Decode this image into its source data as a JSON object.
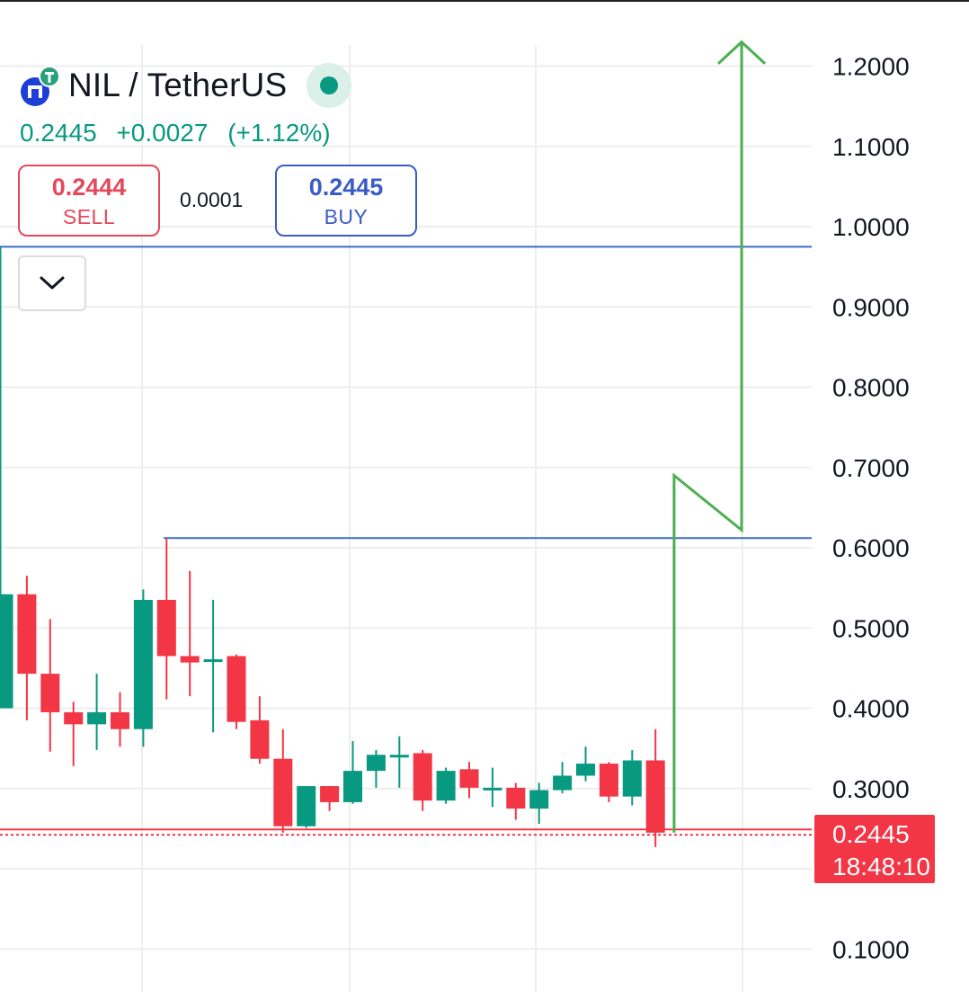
{
  "symbol": {
    "icon": "nil-coin-icon",
    "title": "NIL / TetherUS",
    "status": "market-open-dot"
  },
  "quote": {
    "price": "0.2445",
    "change": "+0.0027",
    "change_pct": "(+1.12%)"
  },
  "trade": {
    "sell_price": "0.2444",
    "sell_label": "SELL",
    "spread": "0.0001",
    "buy_price": "0.2445",
    "buy_label": "BUY"
  },
  "controls": {
    "collapse_icon": "chevron-down-icon"
  },
  "last_price_tag": {
    "price": "0.2445",
    "countdown": "18:48:10"
  },
  "colors": {
    "up": "#089981",
    "down": "#f23645",
    "level_line": "#3b6bc4",
    "arrow": "#4caf50",
    "grid": "#eeeeee"
  },
  "chart_data": {
    "type": "candlestick",
    "y_ticks": [
      "1.2000",
      "1.1000",
      "1.0000",
      "0.9000",
      "0.8000",
      "0.7000",
      "0.6000",
      "0.5000",
      "0.4000",
      "0.3000",
      "0.1000"
    ],
    "ylim": [
      0.04,
      1.3
    ],
    "grid": true,
    "candles": [
      {
        "open": 0.4,
        "high": 0.542,
        "low": 0.4,
        "close": 0.542
      },
      {
        "open": 0.542,
        "high": 0.565,
        "low": 0.385,
        "close": 0.443
      },
      {
        "open": 0.443,
        "high": 0.511,
        "low": 0.346,
        "close": 0.395
      },
      {
        "open": 0.395,
        "high": 0.408,
        "low": 0.328,
        "close": 0.38
      },
      {
        "open": 0.38,
        "high": 0.443,
        "low": 0.348,
        "close": 0.395
      },
      {
        "open": 0.395,
        "high": 0.42,
        "low": 0.352,
        "close": 0.374
      },
      {
        "open": 0.374,
        "high": 0.548,
        "low": 0.352,
        "close": 0.535
      },
      {
        "open": 0.535,
        "high": 0.611,
        "low": 0.411,
        "close": 0.465
      },
      {
        "open": 0.465,
        "high": 0.571,
        "low": 0.415,
        "close": 0.457
      },
      {
        "open": 0.458,
        "high": 0.535,
        "low": 0.37,
        "close": 0.461
      },
      {
        "open": 0.465,
        "high": 0.467,
        "low": 0.374,
        "close": 0.383
      },
      {
        "open": 0.385,
        "high": 0.415,
        "low": 0.331,
        "close": 0.337
      },
      {
        "open": 0.337,
        "high": 0.374,
        "low": 0.245,
        "close": 0.253
      },
      {
        "open": 0.253,
        "high": 0.303,
        "low": 0.251,
        "close": 0.303
      },
      {
        "open": 0.303,
        "high": 0.303,
        "low": 0.272,
        "close": 0.283
      },
      {
        "open": 0.283,
        "high": 0.359,
        "low": 0.281,
        "close": 0.322
      },
      {
        "open": 0.322,
        "high": 0.348,
        "low": 0.301,
        "close": 0.342
      },
      {
        "open": 0.342,
        "high": 0.365,
        "low": 0.301,
        "close": 0.342
      },
      {
        "open": 0.344,
        "high": 0.348,
        "low": 0.272,
        "close": 0.285
      },
      {
        "open": 0.285,
        "high": 0.326,
        "low": 0.281,
        "close": 0.322
      },
      {
        "open": 0.324,
        "high": 0.333,
        "low": 0.288,
        "close": 0.301
      },
      {
        "open": 0.301,
        "high": 0.326,
        "low": 0.277,
        "close": 0.301
      },
      {
        "open": 0.301,
        "high": 0.307,
        "low": 0.261,
        "close": 0.275
      },
      {
        "open": 0.275,
        "high": 0.307,
        "low": 0.256,
        "close": 0.298
      },
      {
        "open": 0.298,
        "high": 0.333,
        "low": 0.294,
        "close": 0.316
      },
      {
        "open": 0.316,
        "high": 0.352,
        "low": 0.309,
        "close": 0.331
      },
      {
        "open": 0.331,
        "high": 0.333,
        "low": 0.283,
        "close": 0.29
      },
      {
        "open": 0.29,
        "high": 0.348,
        "low": 0.279,
        "close": 0.335
      },
      {
        "open": 0.335,
        "high": 0.374,
        "low": 0.227,
        "close": 0.245
      }
    ],
    "horizontal_levels": [
      0.975,
      0.612
    ],
    "last_price": 0.2445,
    "projection_arrow": [
      {
        "candle": 28.8,
        "price": 0.245
      },
      {
        "candle": 28.8,
        "price": 0.69
      },
      {
        "candle": 31.7,
        "price": 0.622
      },
      {
        "candle": 31.7,
        "price": 1.23
      }
    ]
  }
}
